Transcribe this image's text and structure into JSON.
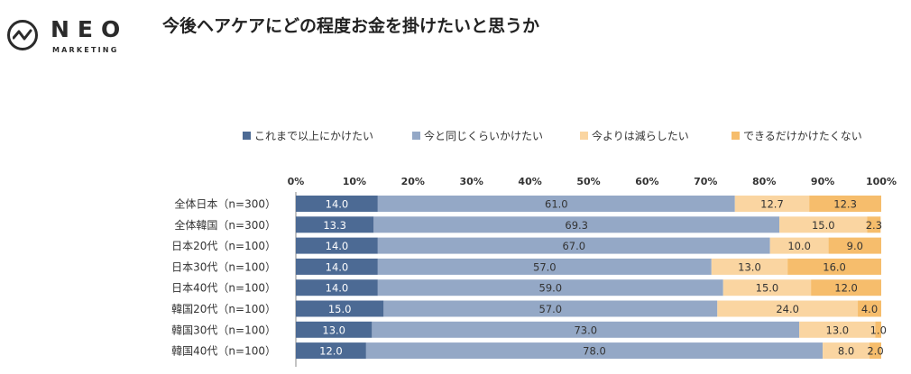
{
  "brand": {
    "name": "NEO",
    "subtitle": "MARKETING"
  },
  "chart_data": {
    "type": "bar",
    "orientation": "horizontal",
    "stacked": true,
    "percent_stacked": true,
    "title": "今後ヘアケアにどの程度お金を掛けたいと思うか",
    "categories": [
      "全体日本（n=300）",
      "全体韓国（n=300）",
      "日本20代（n=100）",
      "日本30代（n=100）",
      "日本40代（n=100）",
      "韓国20代（n=100）",
      "韓国30代（n=100）",
      "韓国40代（n=100）"
    ],
    "series": [
      {
        "name": "これまで以上にかけたい",
        "color": "#4c6a94",
        "values": [
          14.0,
          13.3,
          14.0,
          14.0,
          14.0,
          15.0,
          13.0,
          12.0
        ]
      },
      {
        "name": "今と同じくらいかけたい",
        "color": "#94a8c6",
        "values": [
          61.0,
          69.3,
          67.0,
          57.0,
          59.0,
          57.0,
          73.0,
          78.0
        ]
      },
      {
        "name": "今よりは減らしたい",
        "color": "#fad5a1",
        "values": [
          12.7,
          15.0,
          10.0,
          13.0,
          15.0,
          24.0,
          13.0,
          8.0
        ]
      },
      {
        "name": "できるだけかけたくない",
        "color": "#f6bd6c",
        "values": [
          12.3,
          2.3,
          9.0,
          16.0,
          12.0,
          4.0,
          1.0,
          2.0
        ]
      }
    ],
    "xlim": [
      0,
      100
    ],
    "xticks": [
      "0%",
      "10%",
      "20%",
      "30%",
      "40%",
      "50%",
      "60%",
      "70%",
      "80%",
      "90%",
      "100%"
    ],
    "legend_position": "top",
    "xaxis_position": "top",
    "grid": false
  }
}
